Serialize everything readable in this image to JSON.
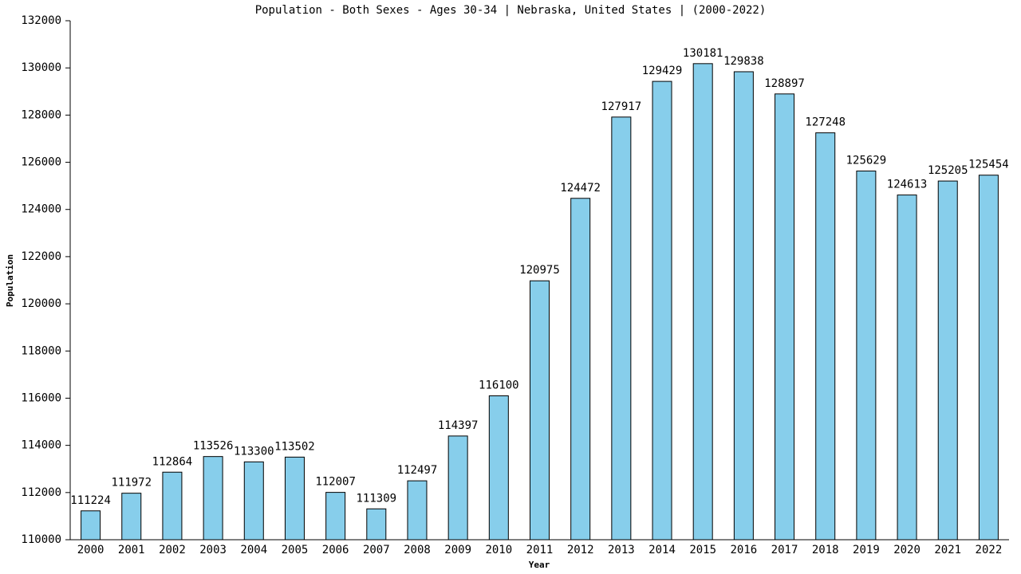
{
  "chart_data": {
    "type": "bar",
    "title": "Population - Both Sexes - Ages 30-34 | Nebraska, United States |  (2000-2022)",
    "x_label": "Year",
    "y_label": "Population",
    "categories": [
      "2000",
      "2001",
      "2002",
      "2003",
      "2004",
      "2005",
      "2006",
      "2007",
      "2008",
      "2009",
      "2010",
      "2011",
      "2012",
      "2013",
      "2014",
      "2015",
      "2016",
      "2017",
      "2018",
      "2019",
      "2020",
      "2021",
      "2022"
    ],
    "values": [
      111224,
      111972,
      112864,
      113526,
      113300,
      113502,
      112007,
      111309,
      112497,
      114397,
      116100,
      120975,
      124472,
      127917,
      129429,
      130181,
      129838,
      128897,
      127248,
      125629,
      124613,
      125205,
      125454
    ],
    "color": "#87ceeb",
    "ylim": [
      110000,
      132000
    ],
    "yticks": [
      110000,
      112000,
      114000,
      116000,
      118000,
      120000,
      122000,
      124000,
      126000,
      128000,
      130000,
      132000
    ],
    "grid": false
  }
}
